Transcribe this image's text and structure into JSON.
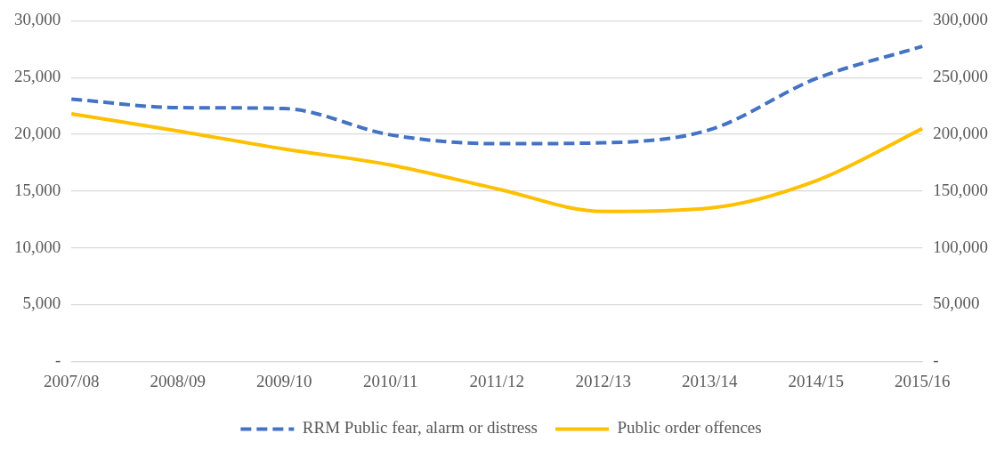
{
  "chart_data": {
    "type": "line",
    "categories": [
      "2007/08",
      "2008/09",
      "2009/10",
      "2010/11",
      "2011/12",
      "2012/13",
      "2013/14",
      "2014/15",
      "2015/16"
    ],
    "series": [
      {
        "name": "RRM Public fear, alarm or distress",
        "color": "#4472c4",
        "line_style": "dashed",
        "values": [
          23100,
          22350,
          22270,
          19950,
          19170,
          19250,
          20400,
          24900,
          27750
        ]
      },
      {
        "name": "Public order offences",
        "color": "#ffc000",
        "line_style": "solid",
        "axis": "y2",
        "values": [
          218000,
          203000,
          187000,
          173000,
          152000,
          132000,
          135000,
          159000,
          205000
        ]
      }
    ],
    "ylim": [
      0,
      30000
    ],
    "yticks": [
      {
        "value": 0,
        "label": "-"
      },
      {
        "value": 5000,
        "label": "5,000"
      },
      {
        "value": 10000,
        "label": "10,000"
      },
      {
        "value": 15000,
        "label": "15,000"
      },
      {
        "value": 20000,
        "label": "20,000"
      },
      {
        "value": 25000,
        "label": "25,000"
      },
      {
        "value": 30000,
        "label": "30,000"
      }
    ],
    "y2lim": [
      0,
      300000
    ],
    "y2ticks": [
      {
        "value": 0,
        "label": "-"
      },
      {
        "value": 50000,
        "label": "50,000"
      },
      {
        "value": 100000,
        "label": "100,000"
      },
      {
        "value": 150000,
        "label": "150,000"
      },
      {
        "value": 200000,
        "label": "200,000"
      },
      {
        "value": 250000,
        "label": "250,000"
      },
      {
        "value": 300000,
        "label": "300,000"
      }
    ],
    "grid": "y",
    "legend": "bottom",
    "marker": "none"
  }
}
